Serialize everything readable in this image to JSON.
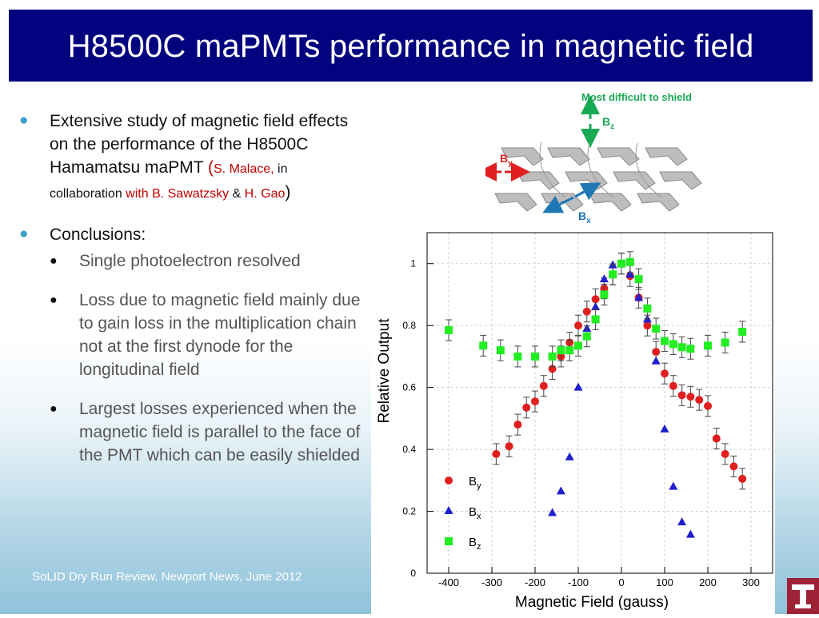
{
  "slide": {
    "title": "H8500C maPMTs performance in magnetic field",
    "bullet1": {
      "text_a": "Extensive study of magnetic field effects on the performance of the H8500C Hamamatsu maPMT ",
      "paren_open": "(",
      "author1": "S. Malace,",
      "collab": " in collaboration ",
      "author2": "with B. Sawatzsky",
      "amp": " & ",
      "author3": "H. Gao",
      "paren_close": ")"
    },
    "bullet2": "Conclusions:",
    "sub_bullets": [
      "Single photoelectron resolved",
      "Loss due to magnetic field mainly due to gain loss in the multiplication chain not at the first dynode for the longitudinal field",
      "Largest losses experienced when the magnetic field is parallel to the face of the PMT which can be easily shielded"
    ],
    "footer": "SoLID Dry Run Review, Newport News,  June 2012",
    "logo": "T"
  },
  "diagram": {
    "title": "Most difficult to shield",
    "bz": "B",
    "bz_sub": "z",
    "by": "B",
    "by_sub": "y",
    "bx": "B",
    "bx_sub": "x",
    "colors": {
      "green": "#1aaa55",
      "red": "#e02020",
      "blue": "#1f77b4"
    }
  },
  "chart_data": {
    "type": "scatter",
    "xlabel": "Magnetic Field (gauss)",
    "ylabel": "Relative Output",
    "xlim": [
      -450,
      350
    ],
    "ylim": [
      0,
      1.1
    ],
    "xticks": [
      -400,
      -300,
      -200,
      -100,
      0,
      100,
      200,
      300
    ],
    "yticks": [
      0,
      0.2,
      0.4,
      0.6,
      0.8,
      1
    ],
    "series": [
      {
        "name": "B",
        "sub": "y",
        "marker": "circle",
        "color": "#e02020",
        "x": [
          -290,
          -260,
          -240,
          -220,
          -200,
          -180,
          -160,
          -140,
          -120,
          -100,
          -80,
          -60,
          -40,
          -20,
          0,
          20,
          40,
          60,
          80,
          100,
          120,
          140,
          160,
          180,
          200,
          220,
          240,
          260,
          280
        ],
        "y": [
          0.385,
          0.41,
          0.48,
          0.535,
          0.555,
          0.605,
          0.66,
          0.7,
          0.745,
          0.8,
          0.845,
          0.885,
          0.92,
          0.965,
          1.0,
          0.96,
          0.89,
          0.8,
          0.715,
          0.645,
          0.605,
          0.575,
          0.57,
          0.56,
          0.54,
          0.435,
          0.385,
          0.345,
          0.305
        ]
      },
      {
        "name": "B",
        "sub": "x",
        "marker": "triangle",
        "color": "#1f1fcc",
        "x": [
          -160,
          -140,
          -120,
          -100,
          -80,
          -60,
          -40,
          -20,
          0,
          20,
          40,
          60,
          80,
          100,
          120,
          140,
          160
        ],
        "y": [
          0.195,
          0.265,
          0.375,
          0.6,
          0.79,
          0.86,
          0.95,
          0.995,
          1.0,
          0.965,
          0.89,
          0.82,
          0.685,
          0.465,
          0.28,
          0.165,
          0.125
        ]
      },
      {
        "name": "B",
        "sub": "z",
        "marker": "square",
        "color": "#22ee22",
        "x": [
          -400,
          -320,
          -280,
          -240,
          -200,
          -160,
          -140,
          -120,
          -100,
          -80,
          -60,
          -40,
          -20,
          0,
          20,
          40,
          60,
          80,
          100,
          120,
          140,
          160,
          200,
          240,
          280
        ],
        "y": [
          0.785,
          0.735,
          0.72,
          0.7,
          0.7,
          0.7,
          0.72,
          0.72,
          0.735,
          0.765,
          0.82,
          0.9,
          0.965,
          1.0,
          1.005,
          0.95,
          0.855,
          0.79,
          0.75,
          0.74,
          0.73,
          0.725,
          0.735,
          0.745,
          0.78
        ]
      }
    ]
  }
}
